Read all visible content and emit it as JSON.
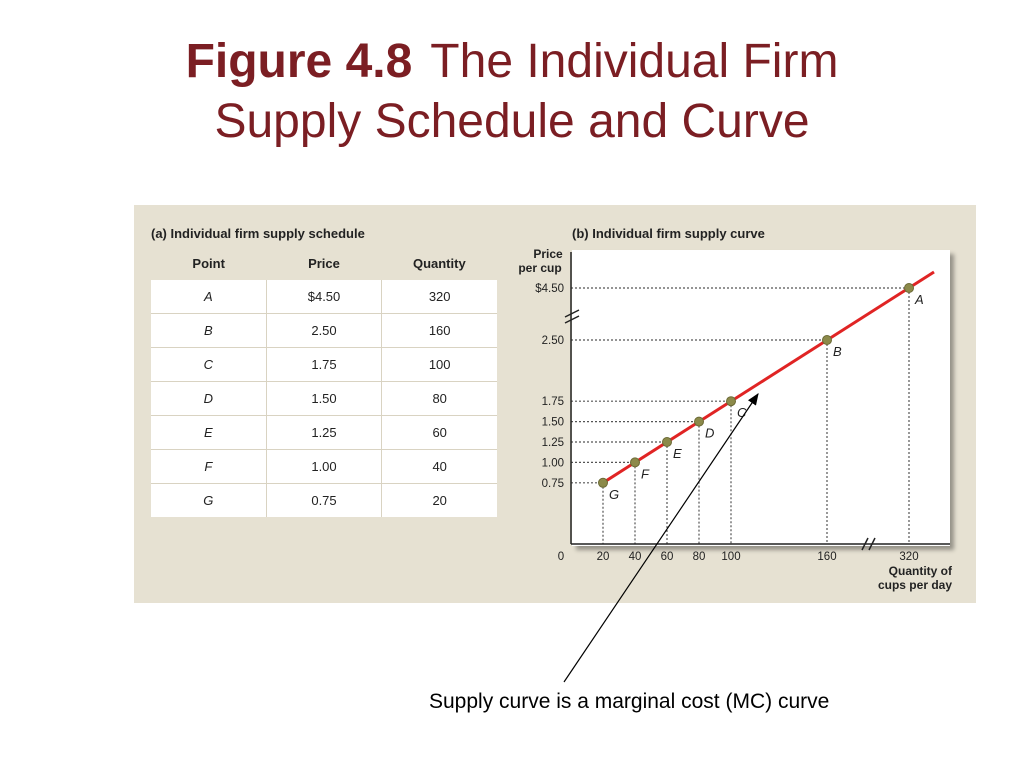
{
  "slide": {
    "figure_number": "Figure 4.8",
    "title_rest": "The Individual Firm",
    "title_line2": "Supply Schedule and Curve",
    "caption": "Supply curve is a marginal cost (MC) curve"
  },
  "schedule": {
    "heading": "(a) Individual firm supply schedule",
    "columns": [
      "Point",
      "Price",
      "Quantity"
    ],
    "rows": [
      {
        "point": "A",
        "price": "$4.50",
        "quantity": "320"
      },
      {
        "point": "B",
        "price": "2.50",
        "quantity": "160"
      },
      {
        "point": "C",
        "price": "1.75",
        "quantity": "100"
      },
      {
        "point": "D",
        "price": "1.50",
        "quantity": "80"
      },
      {
        "point": "E",
        "price": "1.25",
        "quantity": "60"
      },
      {
        "point": "F",
        "price": "1.00",
        "quantity": "40"
      },
      {
        "point": "G",
        "price": "0.75",
        "quantity": "20"
      }
    ]
  },
  "chart_data": {
    "type": "line",
    "title": "(b) Individual firm supply curve",
    "xlabel": "Quantity of cups per day",
    "ylabel": "Price per cup",
    "points": [
      {
        "label": "G",
        "x": 20,
        "y": 0.75
      },
      {
        "label": "F",
        "x": 40,
        "y": 1.0
      },
      {
        "label": "E",
        "x": 60,
        "y": 1.25
      },
      {
        "label": "D",
        "x": 80,
        "y": 1.5
      },
      {
        "label": "C",
        "x": 100,
        "y": 1.75
      },
      {
        "label": "B",
        "x": 160,
        "y": 2.5
      },
      {
        "label": "A",
        "x": 320,
        "y": 4.5
      }
    ],
    "x_ticks": [
      {
        "value": 0,
        "label": "0"
      },
      {
        "value": 20,
        "label": "20"
      },
      {
        "value": 40,
        "label": "40"
      },
      {
        "value": 60,
        "label": "60"
      },
      {
        "value": 80,
        "label": "80"
      },
      {
        "value": 100,
        "label": "100"
      },
      {
        "value": 160,
        "label": "160"
      },
      {
        "value": 320,
        "label": "320"
      }
    ],
    "y_ticks": [
      {
        "value": 0.75,
        "label": "0.75"
      },
      {
        "value": 1.0,
        "label": "1.00"
      },
      {
        "value": 1.25,
        "label": "1.25"
      },
      {
        "value": 1.5,
        "label": "1.50"
      },
      {
        "value": 1.75,
        "label": "1.75"
      },
      {
        "value": 2.5,
        "label": "2.50"
      },
      {
        "value": 4.5,
        "label": "$4.50"
      }
    ],
    "axis_breaks": [
      "x",
      "y"
    ],
    "line_color": "#e02424",
    "point_color": "#8c8a4a",
    "guide_color": "#555555",
    "grid": false
  }
}
